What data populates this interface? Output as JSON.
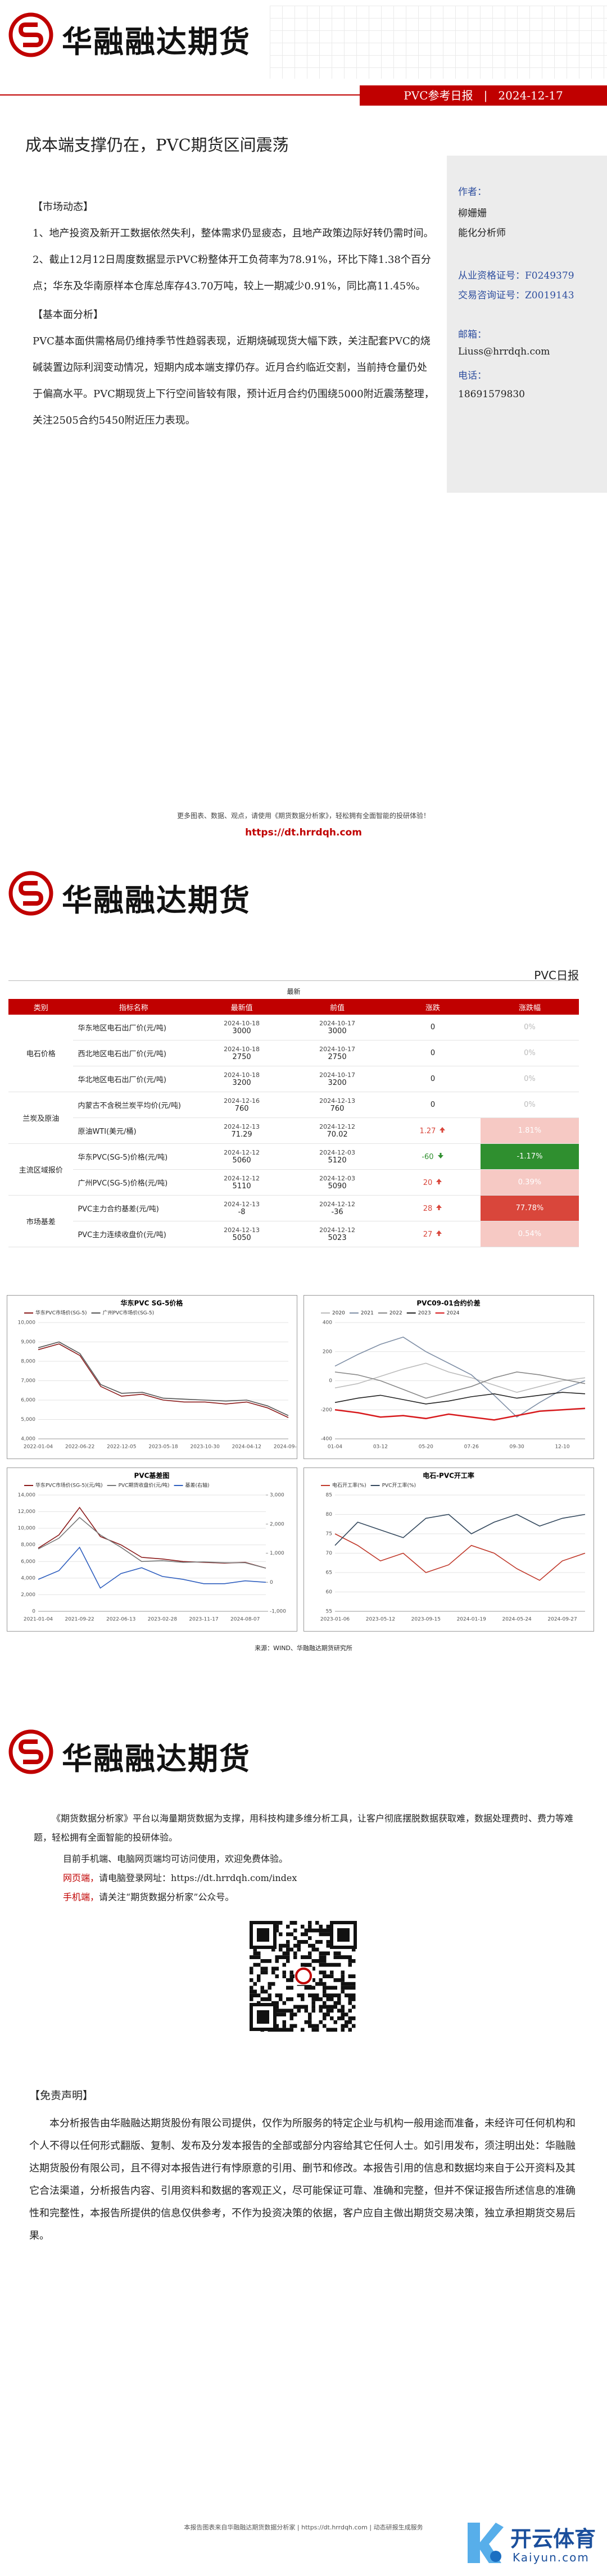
{
  "logo_text": "华融融达期货",
  "report_bar": {
    "name": "PVC参考日报",
    "date": "2024-12-17"
  },
  "title": "成本端支撑仍在，PVC期货区间震荡",
  "body": {
    "sections": [
      {
        "heading": "【市场动态】",
        "paragraphs": [
          "1、地产投资及新开工数据依然失利，整体需求仍显疲态，且地产政策边际好转仍需时间。",
          "2、截止12月12日周度数据显示PVC粉整体开工负荷率为78.91%，环比下降1.38个百分点；华东及华南原样本仓库总库存43.70万吨，较上一期减少0.91%，同比高11.45%。"
        ]
      },
      {
        "heading": "【基本面分析】",
        "paragraphs": [
          "PVC基本面供需格局仍维持季节性趋弱表现，近期烧碱现货大幅下跌，关注配套PVC的烧碱装置边际利润变动情况，短期内成本端支撑仍存。近月合约临近交割，当前持仓量仍处于偏高水平。PVC期现货上下行空间皆较有限，预计近月合约仍围绕5000附近震荡整理，关注2505合约5450附近压力表现。"
        ]
      }
    ]
  },
  "sidebar": {
    "author_label": "作者：",
    "author": "柳姗姗",
    "role": "能化分析师",
    "license": "从业资格证号：F0249379",
    "consult": "交易咨询证号：Z0019143",
    "email_label": "邮箱：",
    "email": "Liuss@hrrdqh.com",
    "phone_label": "电话：",
    "phone": "18691579830"
  },
  "page1_footer": {
    "text": "更多图表、数据、观点，请使用《期货数据分析家》，轻松拥有全面智能的投研体验！",
    "link": "https://dt.hrrdqh.com"
  },
  "daily_label": "PVC日报",
  "table": {
    "caption": "最新",
    "header": [
      "类别",
      "指标名称",
      "最新值",
      "前值",
      "涨跌",
      "涨跌幅"
    ],
    "groups": [
      {
        "name": "电石价格",
        "rows": [
          0,
          1,
          2
        ]
      },
      {
        "name": "兰炭及原油",
        "rows": [
          3,
          4
        ]
      },
      {
        "name": "主流区域报价",
        "rows": [
          5,
          6
        ]
      },
      {
        "name": "市场基差",
        "rows": [
          7,
          8
        ]
      }
    ],
    "rows": [
      {
        "name": "华东地区电石出厂价(元/吨)",
        "date": "2024-10-18",
        "value": "3000",
        "prev_date": "2024-10-17",
        "prev": "3000",
        "change": "0",
        "pct": "0%"
      },
      {
        "name": "西北地区电石出厂价(元/吨)",
        "date": "2024-10-18",
        "value": "2750",
        "prev_date": "2024-10-17",
        "prev": "2750",
        "change": "0",
        "pct": "0%"
      },
      {
        "name": "华北地区电石出厂价(元/吨)",
        "date": "2024-10-18",
        "value": "3200",
        "prev_date": "2024-10-17",
        "prev": "3200",
        "change": "0",
        "pct": "0%"
      },
      {
        "name": "内蒙古不含税兰炭平均价(元/吨)",
        "date": "2024-12-16",
        "value": "760",
        "prev_date": "2024-12-13",
        "prev": "760",
        "change": "0",
        "pct": "0%"
      },
      {
        "name": "原油WTI(美元/桶)",
        "date": "2024-12-13",
        "value": "71.29",
        "prev_date": "2024-12-12",
        "prev": "70.02",
        "change": "1.27",
        "pct": "1.81%"
      },
      {
        "name": "华东PVC(SG-5)价格(元/吨)",
        "date": "2024-12-12",
        "value": "5060",
        "prev_date": "2024-12-03",
        "prev": "5120",
        "change": "-60",
        "pct": "-1.17%"
      },
      {
        "name": "广州PVC(SG-5)价格(元/吨)",
        "date": "2024-12-12",
        "value": "5110",
        "prev_date": "2024-12-03",
        "prev": "5090",
        "change": "20",
        "pct": "0.39%"
      },
      {
        "name": "PVC主力合约基差(元/吨)",
        "date": "2024-12-13",
        "value": "-8",
        "prev_date": "2024-12-12",
        "prev": "-36",
        "change": "28",
        "pct": "77.78%"
      },
      {
        "name": "PVC主力连续收盘价(元/吨)",
        "date": "2024-12-13",
        "value": "5050",
        "prev_date": "2024-12-12",
        "prev": "5023",
        "change": "27",
        "pct": "0.54%"
      }
    ]
  },
  "chart_data": [
    {
      "type": "line",
      "title": "华东PVC SG-5价格",
      "categories": [
        "2022-01-04",
        null,
        "2022-06-22",
        null,
        "2022-12-05",
        null,
        "2023-05-18",
        null,
        "2023-10-30",
        null,
        "2024-04-12",
        null,
        "2024-09-23"
      ],
      "series": [
        {
          "name": "华东PVC市场价(SG-5)",
          "color": "#8b1a1a",
          "values": [
            8600,
            8900,
            8300,
            6700,
            6200,
            6300,
            6000,
            5900,
            5900,
            5800,
            5900,
            5600,
            5100
          ]
        },
        {
          "name": "广州PVC市场价(SG-5)",
          "color": "#555555",
          "values": [
            8700,
            9000,
            8400,
            6800,
            6350,
            6400,
            6100,
            6050,
            6000,
            5950,
            6000,
            5700,
            5200
          ]
        }
      ],
      "ylim": [
        4000,
        10000
      ],
      "yticks": [
        {
          "value": 4000,
          "label": "4,000"
        },
        {
          "value": 5000,
          "label": "5,000"
        },
        {
          "value": 6000,
          "label": "6,000"
        },
        {
          "value": 7000,
          "label": "7,000"
        },
        {
          "value": 8000,
          "label": "8,000"
        },
        {
          "value": 9000,
          "label": "9,000"
        },
        {
          "value": 10000,
          "label": "10,000"
        }
      ],
      "grid": true
    },
    {
      "type": "line",
      "title": "PVC09-01合约价差",
      "categories": [
        "01-04",
        null,
        "03-12",
        null,
        "05-20",
        null,
        "07-26",
        null,
        "09-30",
        null,
        "12-10",
        null
      ],
      "series": [
        {
          "name": "2020",
          "color": "#bbbbbb",
          "values": [
            -50,
            -20,
            30,
            80,
            120,
            60,
            20,
            -30,
            -80,
            -40,
            0,
            20
          ]
        },
        {
          "name": "2021",
          "color": "#7f8fa6",
          "values": [
            100,
            180,
            250,
            300,
            200,
            120,
            40,
            -100,
            -250,
            -150,
            -60,
            0
          ]
        },
        {
          "name": "2022",
          "color": "#888888",
          "values": [
            60,
            40,
            0,
            -60,
            -120,
            -80,
            -40,
            20,
            60,
            40,
            10,
            -20
          ]
        },
        {
          "name": "2023",
          "color": "#222222",
          "values": [
            -150,
            -120,
            -100,
            -130,
            -160,
            -140,
            -110,
            -90,
            -120,
            -100,
            -80,
            -90
          ]
        },
        {
          "name": "2024",
          "color": "#d7191c",
          "values": [
            -200,
            -220,
            -250,
            -240,
            -260,
            -230,
            -250,
            -270,
            -240,
            -210,
            -200,
            -190
          ]
        }
      ],
      "ylim": [
        -400,
        400
      ],
      "yticks": [
        -400,
        -200,
        0,
        200,
        400
      ],
      "grid": true
    },
    {
      "type": "line",
      "title": "PVC基差图",
      "categories": [
        "2021-01-04",
        null,
        "2021-09-22",
        null,
        "2022-06-13",
        null,
        "2023-02-28",
        null,
        "2023-11-17",
        null,
        "2024-08-07",
        null
      ],
      "series": [
        {
          "name": "华东PVC市场价(SG-5)(元/吨)",
          "color": "#8b1a1a",
          "values": [
            7600,
            9200,
            12500,
            9000,
            8000,
            6500,
            6300,
            6000,
            5900,
            5800,
            5900,
            5200
          ]
        },
        {
          "name": "PVC期货收盘价(元/吨)",
          "color": "#777777",
          "values": [
            7500,
            8800,
            11300,
            9200,
            7700,
            6000,
            6100,
            5900,
            5950,
            5850,
            5850,
            5200
          ]
        },
        {
          "name": "基差(右轴)",
          "color": "#2f5fbf",
          "axis": "y2",
          "values": [
            100,
            400,
            1200,
            -200,
            300,
            500,
            200,
            100,
            -50,
            -50,
            50,
            0
          ]
        }
      ],
      "ylim": [
        0,
        14000
      ],
      "yticks": [
        {
          "value": 0,
          "label": "0"
        },
        {
          "value": 2000,
          "label": "2,000"
        },
        {
          "value": 4000,
          "label": "4,000"
        },
        {
          "value": 6000,
          "label": "6,000"
        },
        {
          "value": 8000,
          "label": "8,000"
        },
        {
          "value": 10000,
          "label": "10,000"
        },
        {
          "value": 12000,
          "label": "12,000"
        },
        {
          "value": 14000,
          "label": "14,000"
        }
      ],
      "y2lim": [
        -1000,
        3000
      ],
      "y2ticks": [
        {
          "value": -1000,
          "label": "-1,000"
        },
        0,
        {
          "value": 1000,
          "label": "1,000"
        },
        {
          "value": 2000,
          "label": "2,000"
        },
        {
          "value": 3000,
          "label": "3,000"
        }
      ],
      "grid": true
    },
    {
      "type": "line",
      "title": "电石-PVC开工率",
      "categories": [
        "2023-01-06",
        null,
        "2023-05-12",
        null,
        "2023-09-15",
        null,
        "2024-01-19",
        null,
        "2024-05-24",
        null,
        "2024-09-27",
        null
      ],
      "series": [
        {
          "name": "电石开工率(%)",
          "color": "#c0392b",
          "values": [
            75,
            72,
            68,
            70,
            65,
            67,
            72,
            70,
            66,
            63,
            68,
            70
          ]
        },
        {
          "name": "PVC开工率(%)",
          "color": "#34495e",
          "values": [
            72,
            78,
            76,
            74,
            79,
            80,
            75,
            78,
            80,
            77,
            79,
            80
          ]
        }
      ],
      "ylim": [
        55,
        85
      ],
      "yticks": [
        55,
        60,
        65,
        70,
        75,
        80,
        85
      ],
      "grid": true
    }
  ],
  "source": "来源：WIND、华融融达期货研究所",
  "page3": {
    "intro": "《期货数据分析家》平台以海量期货数据为支撑，用科技构建多维分析工具，让客户彻底摆脱数据获取难，数据处理费时、费力等难题，轻松拥有全面智能的投研体验。",
    "access": "目前手机端、电脑网页端均可访问使用，欢迎免费体验。",
    "web_label": "网页端，",
    "web": "请电脑登录网址：https://dt.hrrdqh.com/index",
    "mobile_label": "手机端，",
    "mobile": "请关注“期货数据分析家”公众号。",
    "disclaimer_title": "【免责声明】",
    "disclaimer": "本分析报告由华融融达期货股份有限公司提供，仅作为所服务的特定企业与机构一般用途而准备，未经许可任何机构和个人不得以任何形式翻版、复制、发布及分发本报告的全部或部分内容给其它任何人士。如引用发布，须注明出处：华融融达期货股份有限公司，且不得对本报告进行有悖原意的引用、删节和修改。本报告引用的信息和数据均来自于公开资料及其它合法渠道，分析报告内容、引用资料和数据的客观正义，尽可能保证可靠、准确和完整，但并不保证报告所述信息的准确性和完整性，本报告所提供的信息仅供参考，不作为投资决策的依据，客户应自主做出期货交易决策，独立承担期货交易后果。",
    "footer": "本报告图表来自华融融达期货数据分析家 | https://dt.hrrdqh.com | 动态研报生成服务"
  },
  "watermark": {
    "name": "开云体育",
    "domain": "Kaiyun.com"
  }
}
